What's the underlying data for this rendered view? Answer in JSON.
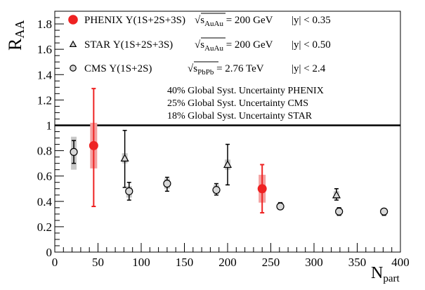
{
  "chart_data": {
    "type": "scatter",
    "title": "",
    "xlabel": "N",
    "xlabel_sub": "part",
    "ylabel": "R",
    "ylabel_sub": "AA",
    "xlim": [
      0,
      400
    ],
    "ylim": [
      0,
      1.9
    ],
    "x_ticks": [
      0,
      50,
      100,
      150,
      200,
      250,
      300,
      350,
      400
    ],
    "y_ticks": [
      "0",
      "0.2",
      "0.4",
      "0.6",
      "0.8",
      "1",
      "1.2",
      "1.4",
      "1.6",
      "1.8"
    ],
    "y_tick_values": [
      0,
      0.2,
      0.4,
      0.6,
      0.8,
      1.0,
      1.2,
      1.4,
      1.6,
      1.8
    ],
    "reference_line": 1.0,
    "grid": false,
    "legend_position": "top-left",
    "series": [
      {
        "name": "PHENIX Υ(1S+2S+3S)",
        "energy_var": "√s",
        "energy_sub": "AuAu",
        "energy": "= 200 GeV",
        "rapidity": "|y| < 0.35",
        "marker": "filled-circle",
        "color": "#ee2222",
        "syst_color": "#f4a0a0",
        "points": [
          {
            "x": 45,
            "y": 0.84,
            "stat_lo": 0.36,
            "stat_hi": 1.29,
            "syst_lo": 0.66,
            "syst_hi": 1.02
          },
          {
            "x": 240,
            "y": 0.5,
            "stat_lo": 0.31,
            "stat_hi": 0.69,
            "syst_lo": 0.39,
            "syst_hi": 0.61
          }
        ]
      },
      {
        "name": "STAR Υ(1S+2S+3S)",
        "energy_var": "√s",
        "energy_sub": "AuAu",
        "energy": "= 200 GeV",
        "rapidity": "|y| < 0.50",
        "marker": "open-triangle",
        "color": "#000000",
        "syst_color": "#c8c8c8",
        "points": [
          {
            "x": 81,
            "y": 0.74,
            "stat_lo": 0.51,
            "stat_hi": 0.96,
            "syst_lo": 0.7,
            "syst_hi": 0.78
          },
          {
            "x": 200,
            "y": 0.69,
            "stat_lo": 0.53,
            "stat_hi": 0.85,
            "syst_lo": 0.65,
            "syst_hi": 0.73
          },
          {
            "x": 326,
            "y": 0.45,
            "stat_lo": 0.41,
            "stat_hi": 0.5,
            "syst_lo": 0.42,
            "syst_hi": 0.48
          }
        ]
      },
      {
        "name": "CMS Υ(1S+2S)",
        "energy_var": "√s",
        "energy_sub": "PbPb",
        "energy": "= 2.76 TeV",
        "rapidity": "|y| < 2.4",
        "marker": "open-circle",
        "color": "#000000",
        "syst_color": "#c8c8c8",
        "points": [
          {
            "x": 22,
            "y": 0.79,
            "stat_lo": 0.7,
            "stat_hi": 0.88,
            "syst_lo": 0.65,
            "syst_hi": 0.91
          },
          {
            "x": 86,
            "y": 0.48,
            "stat_lo": 0.41,
            "stat_hi": 0.55,
            "syst_lo": 0.43,
            "syst_hi": 0.52
          },
          {
            "x": 130,
            "y": 0.54,
            "stat_lo": 0.48,
            "stat_hi": 0.59,
            "syst_lo": 0.5,
            "syst_hi": 0.58
          },
          {
            "x": 187,
            "y": 0.49,
            "stat_lo": 0.45,
            "stat_hi": 0.54,
            "syst_lo": 0.46,
            "syst_hi": 0.53
          },
          {
            "x": 261,
            "y": 0.36,
            "stat_lo": 0.34,
            "stat_hi": 0.39,
            "syst_lo": 0.34,
            "syst_hi": 0.39
          },
          {
            "x": 329,
            "y": 0.32,
            "stat_lo": 0.29,
            "stat_hi": 0.35,
            "syst_lo": 0.3,
            "syst_hi": 0.34
          },
          {
            "x": 381,
            "y": 0.32,
            "stat_lo": 0.29,
            "stat_hi": 0.34,
            "syst_lo": 0.3,
            "syst_hi": 0.34
          }
        ]
      }
    ],
    "annotations": [
      "40% Global Syst. Uncertainty PHENIX",
      "25% Global Syst. Uncertainty CMS",
      "18% Global Syst. Uncertainty STAR"
    ]
  }
}
